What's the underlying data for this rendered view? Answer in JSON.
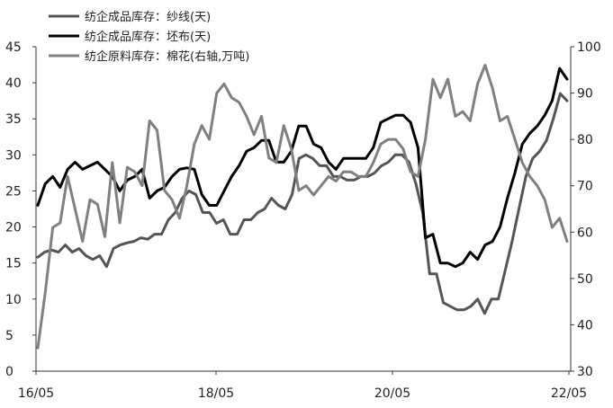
{
  "chart_data": {
    "type": "line",
    "x_ticks": [
      "16/05",
      "18/05",
      "20/05",
      "22/05"
    ],
    "y_left": {
      "min": 0,
      "max": 45,
      "ticks": [
        "0",
        "5",
        "10",
        "15",
        "20",
        "25",
        "30",
        "35",
        "40",
        "45"
      ]
    },
    "y_right": {
      "min": 30,
      "max": 100,
      "ticks": [
        "30",
        "40",
        "50",
        "60",
        "70",
        "80",
        "90",
        "100"
      ]
    },
    "legend_position": "top-left",
    "grid": false,
    "series": [
      {
        "name": "纺企成品库存：纱线(天)",
        "axis": "left",
        "color": "#555555",
        "width": 3,
        "values": [
          15.8,
          16.5,
          16.8,
          16.5,
          17.5,
          16.5,
          17.0,
          16.0,
          15.5,
          16.0,
          14.5,
          17.0,
          17.5,
          17.8,
          18.0,
          18.5,
          18.3,
          19.0,
          19.0,
          21.0,
          22.0,
          24.0,
          25.0,
          24.5,
          22.0,
          22.0,
          20.5,
          21.0,
          19.0,
          19.0,
          21.0,
          21.0,
          22.0,
          22.5,
          24.0,
          23.0,
          22.5,
          24.5,
          29.5,
          30.0,
          29.5,
          28.5,
          28.5,
          27.0,
          27.0,
          26.5,
          26.5,
          27.0,
          27.0,
          27.5,
          28.5,
          29.0,
          30.0,
          30.0,
          29.0,
          26.0,
          22.0,
          13.5,
          13.5,
          9.5,
          9.0,
          8.5,
          8.5,
          9.0,
          10.0,
          8.0,
          10.0,
          10.0,
          14.0,
          18.0,
          22.5,
          27.0,
          29.5,
          30.5,
          32.0,
          35.0,
          38.5,
          37.5
        ]
      },
      {
        "name": "纺企成品库存：坯布(天)",
        "axis": "left",
        "color": "#000000",
        "width": 3,
        "values": [
          23.0,
          26.0,
          27.0,
          25.5,
          28.0,
          29.0,
          28.0,
          28.5,
          29.0,
          28.0,
          27.0,
          25.0,
          26.5,
          27.0,
          28.0,
          24.0,
          25.0,
          25.5,
          27.0,
          28.0,
          28.2,
          28.0,
          24.5,
          23.0,
          23.0,
          25.0,
          27.0,
          28.5,
          30.5,
          31.0,
          32.0,
          32.0,
          29.0,
          29.0,
          30.5,
          34.0,
          34.0,
          31.5,
          31.0,
          29.0,
          28.0,
          29.5,
          29.5,
          29.5,
          29.5,
          31.0,
          34.5,
          35.0,
          35.5,
          35.5,
          34.5,
          31.0,
          18.5,
          19.0,
          15.0,
          15.0,
          14.5,
          15.0,
          16.5,
          15.5,
          17.5,
          18.0,
          20.0,
          24.0,
          27.5,
          31.5,
          33.0,
          34.0,
          35.5,
          37.5,
          42.0,
          40.5
        ]
      },
      {
        "name": "纺企原料库存：棉花(右轴,万吨)",
        "axis": "right",
        "color": "#808080",
        "width": 3,
        "values": [
          35,
          47,
          61,
          62,
          72,
          65,
          58,
          67,
          66,
          59,
          75,
          62,
          74,
          73,
          70,
          84,
          82,
          69,
          67,
          63,
          70,
          79,
          83,
          80,
          90,
          92,
          89,
          88,
          85,
          81,
          85,
          76,
          75,
          83,
          78,
          69,
          70,
          68,
          70,
          72,
          71,
          73,
          73,
          72,
          72,
          75,
          79,
          80,
          80,
          78,
          73,
          72,
          80,
          93,
          89,
          93,
          85,
          86,
          84,
          92,
          96,
          91,
          84,
          85,
          80,
          75,
          72,
          70,
          67,
          61,
          63,
          58
        ]
      }
    ],
    "legend": [
      {
        "label": "纺企成品库存：纱线(天)"
      },
      {
        "label": "纺企成品库存：坯布(天)"
      },
      {
        "label": "纺企原料库存：棉花(右轴,万吨)"
      }
    ]
  }
}
